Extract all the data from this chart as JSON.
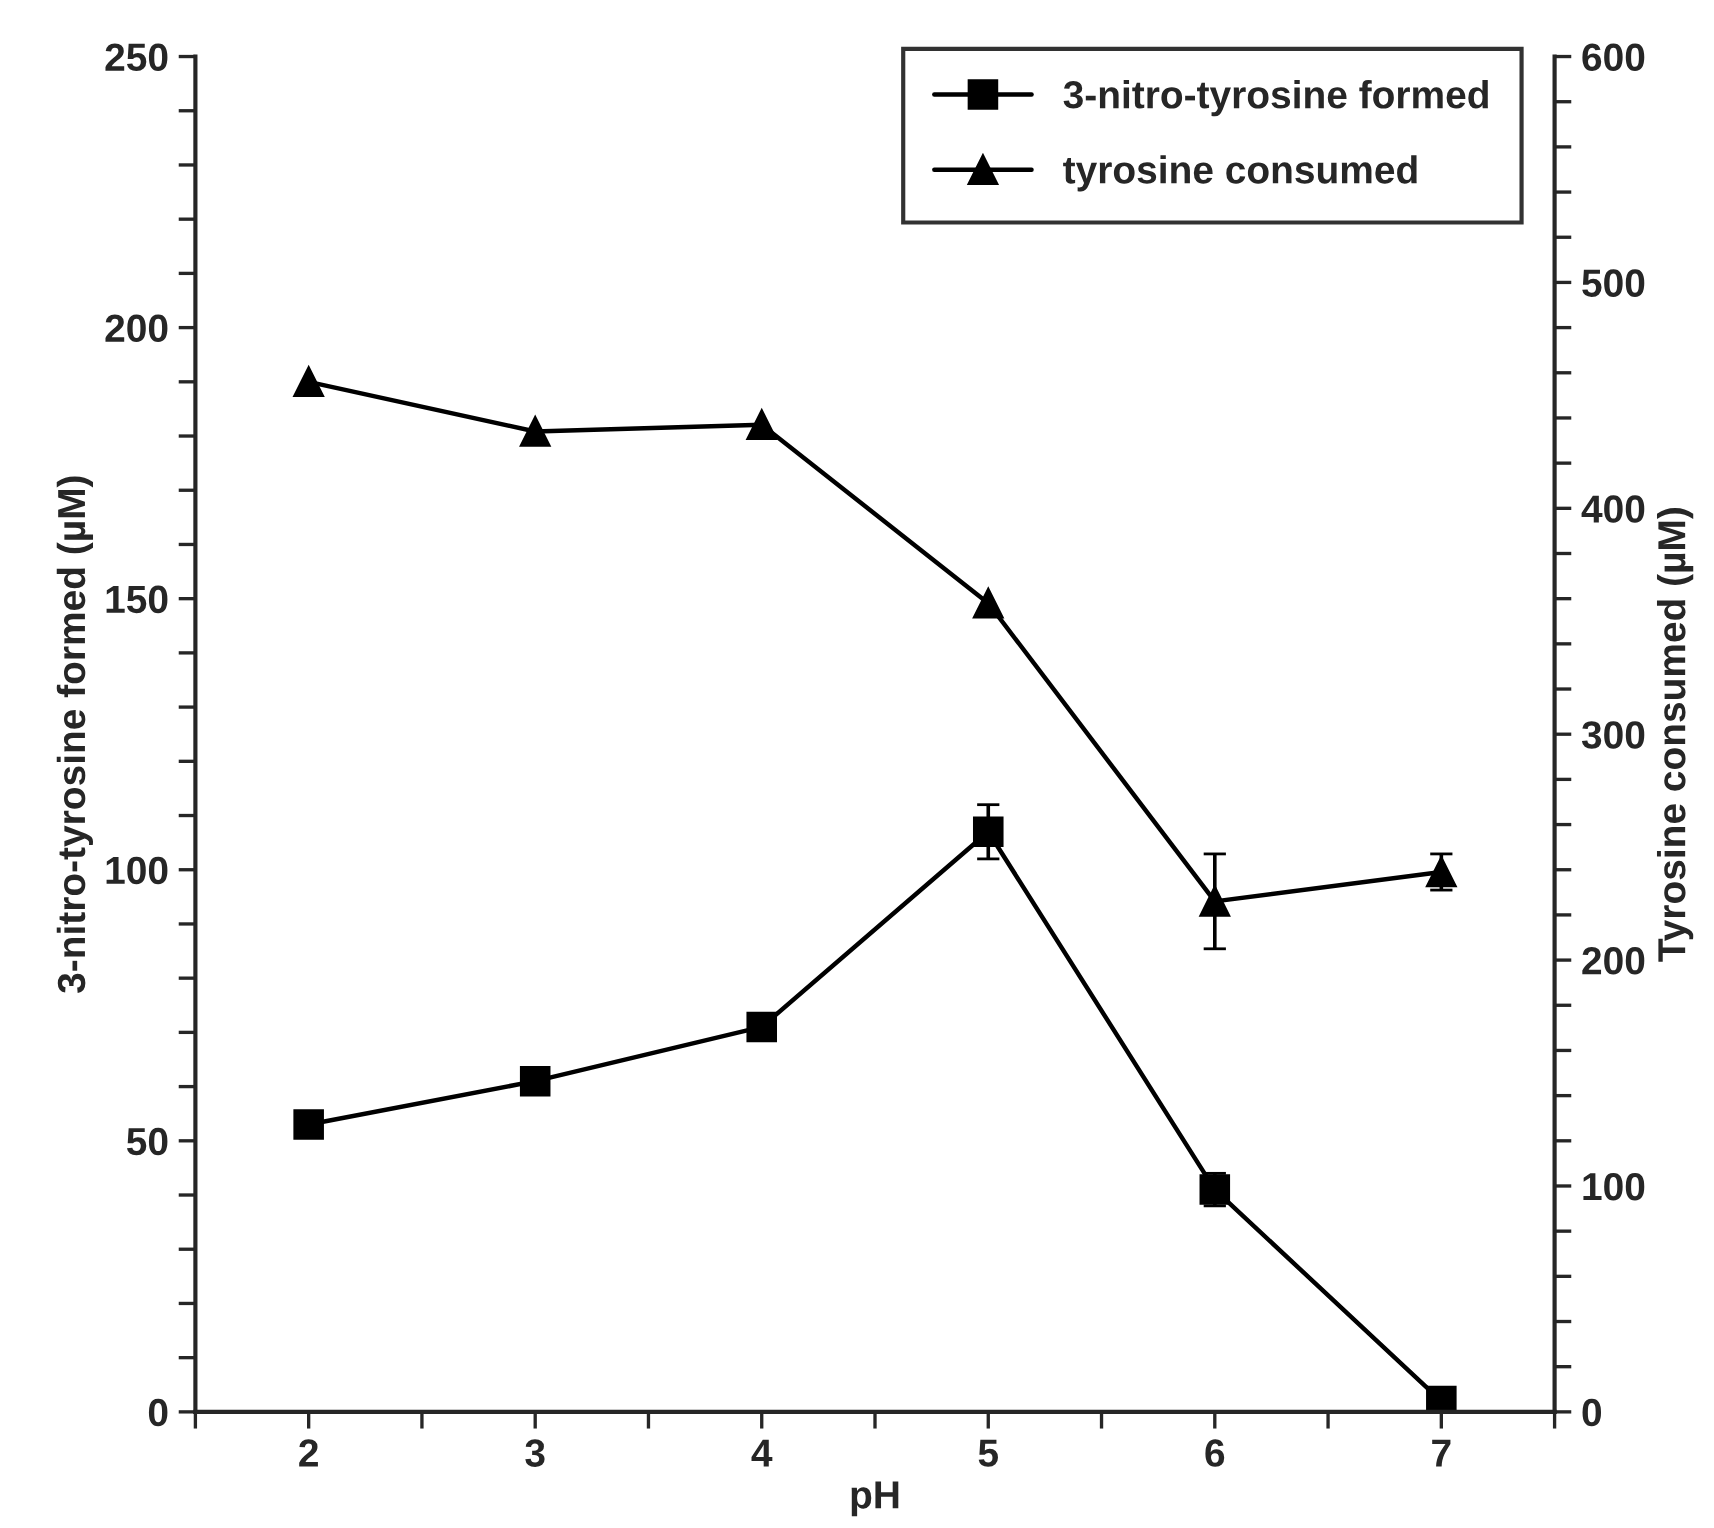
{
  "chart_data": {
    "type": "line",
    "xlabel": "pH",
    "ylabel": "3-nitro-tyrosine formed (µM)",
    "y2label": "Tyrosine consumed (µM)",
    "x": [
      2,
      3,
      4,
      5,
      6,
      7
    ],
    "series": [
      {
        "name": "3-nitro-tyrosine formed",
        "color": "#000000",
        "marker": "square",
        "values": [
          53,
          61,
          71,
          107,
          41,
          2
        ],
        "errors": [
          null,
          null,
          null,
          5,
          3,
          null
        ]
      },
      {
        "name": "tyrosine consumed",
        "color": "#000000",
        "marker": "triangle",
        "axis": "y2",
        "values": [
          456,
          434,
          437,
          358,
          226,
          239
        ],
        "errors": [
          null,
          null,
          null,
          null,
          21,
          8
        ]
      }
    ],
    "xlim": [
      1.5,
      7.5
    ],
    "xticks": [
      {
        "value": 1.5,
        "label": null
      },
      2,
      {
        "value": 2.5,
        "label": null
      },
      3,
      {
        "value": 3.5,
        "label": null
      },
      4,
      {
        "value": 4.5,
        "label": null
      },
      5,
      {
        "value": 5.5,
        "label": null
      },
      6,
      {
        "value": 6.5,
        "label": null
      },
      7,
      {
        "value": 7.5,
        "label": null
      }
    ],
    "ylim": [
      0,
      250
    ],
    "yticks": [
      0,
      {
        "value": 10,
        "label": null
      },
      {
        "value": 20,
        "label": null
      },
      {
        "value": 30,
        "label": null
      },
      {
        "value": 40,
        "label": null
      },
      50,
      {
        "value": 60,
        "label": null
      },
      {
        "value": 70,
        "label": null
      },
      {
        "value": 80,
        "label": null
      },
      {
        "value": 90,
        "label": null
      },
      100,
      {
        "value": 110,
        "label": null
      },
      {
        "value": 120,
        "label": null
      },
      {
        "value": 130,
        "label": null
      },
      {
        "value": 140,
        "label": null
      },
      150,
      {
        "value": 160,
        "label": null
      },
      {
        "value": 170,
        "label": null
      },
      {
        "value": 180,
        "label": null
      },
      {
        "value": 190,
        "label": null
      },
      200,
      {
        "value": 210,
        "label": null
      },
      {
        "value": 220,
        "label": null
      },
      {
        "value": 230,
        "label": null
      },
      {
        "value": 240,
        "label": null
      },
      250
    ],
    "y2lim": [
      0,
      600
    ],
    "y2ticks": [
      0,
      {
        "value": 20,
        "label": null
      },
      {
        "value": 40,
        "label": null
      },
      {
        "value": 60,
        "label": null
      },
      {
        "value": 80,
        "label": null
      },
      100,
      {
        "value": 120,
        "label": null
      },
      {
        "value": 140,
        "label": null
      },
      {
        "value": 160,
        "label": null
      },
      {
        "value": 180,
        "label": null
      },
      200,
      {
        "value": 220,
        "label": null
      },
      {
        "value": 240,
        "label": null
      },
      {
        "value": 260,
        "label": null
      },
      {
        "value": 280,
        "label": null
      },
      300,
      {
        "value": 320,
        "label": null
      },
      {
        "value": 340,
        "label": null
      },
      {
        "value": 360,
        "label": null
      },
      {
        "value": 380,
        "label": null
      },
      400,
      {
        "value": 420,
        "label": null
      },
      {
        "value": 440,
        "label": null
      },
      {
        "value": 460,
        "label": null
      },
      {
        "value": 480,
        "label": null
      },
      500,
      {
        "value": 520,
        "label": null
      },
      {
        "value": 540,
        "label": null
      },
      {
        "value": 560,
        "label": null
      },
      {
        "value": 580,
        "label": null
      },
      600
    ],
    "grid": false,
    "legend": "top right",
    "line_style": "solid"
  }
}
